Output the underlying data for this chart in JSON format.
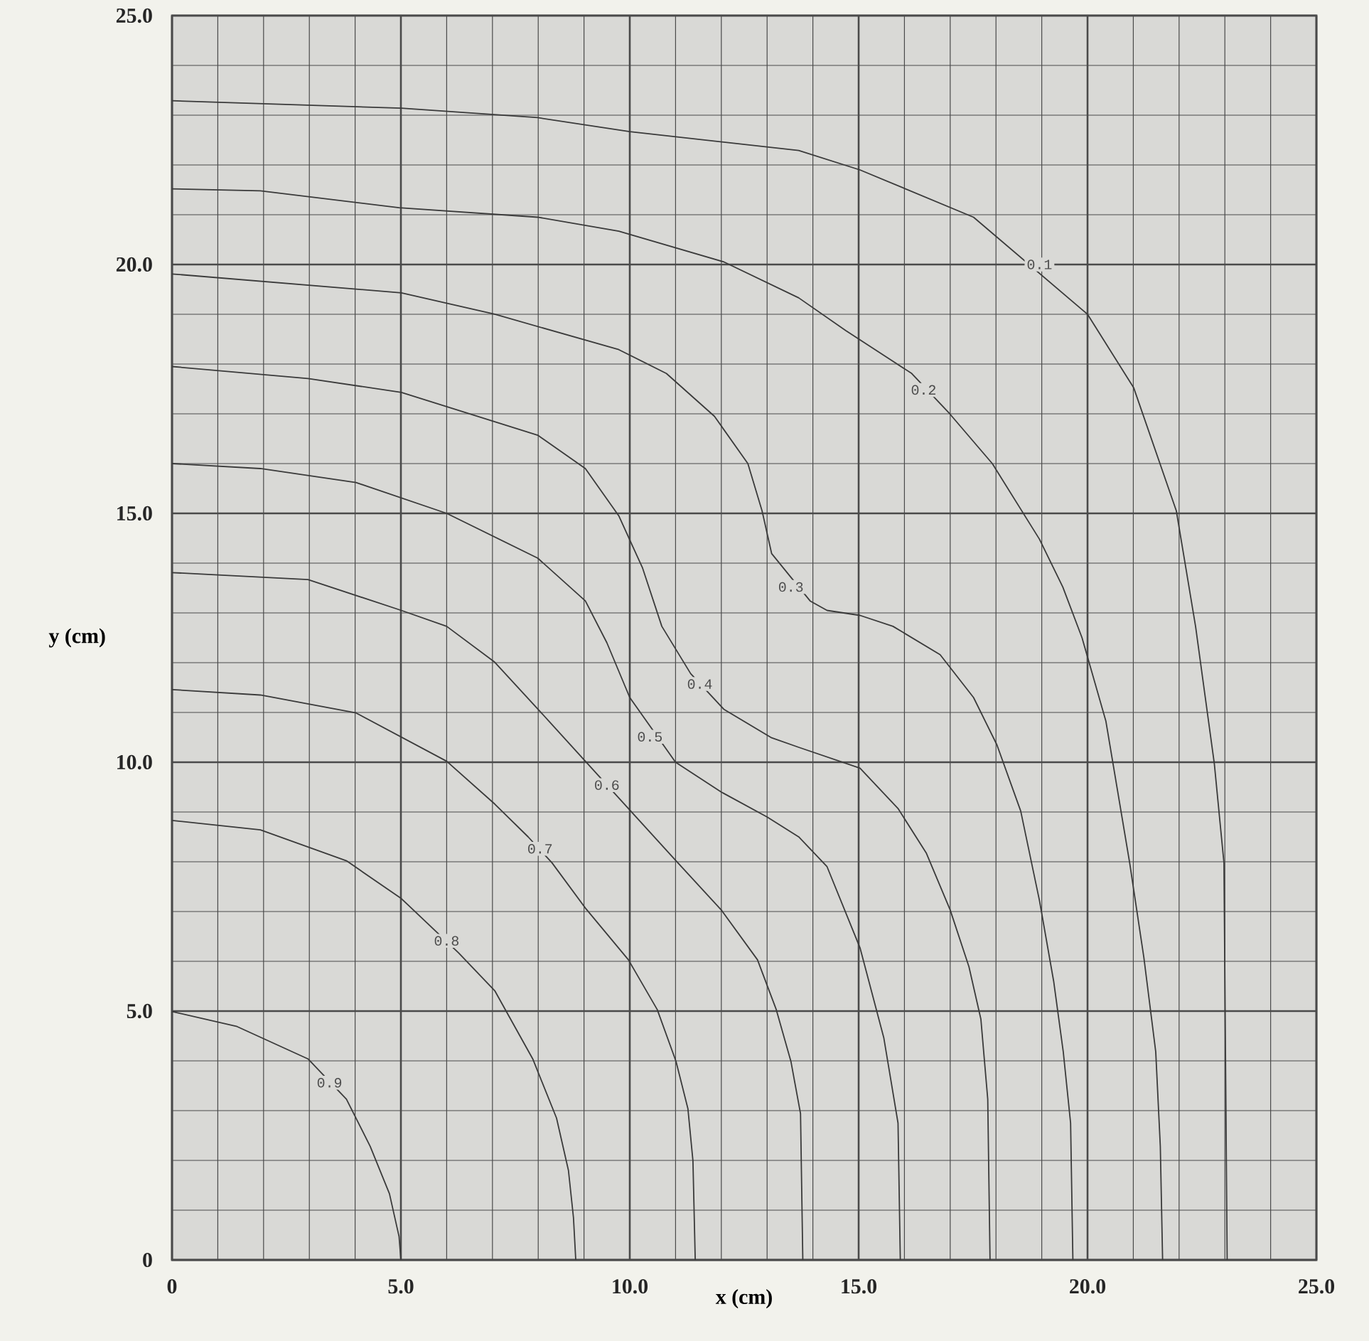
{
  "chart_data": {
    "type": "line",
    "xlabel": "x (cm)",
    "ylabel": "y (cm)",
    "xlim": [
      0,
      25
    ],
    "ylim": [
      0,
      25
    ],
    "xticks": [
      {
        "value": 0,
        "label": "0"
      },
      {
        "value": 5,
        "label": "5.0"
      },
      {
        "value": 10,
        "label": "10.0"
      },
      {
        "value": 15,
        "label": "15.0"
      },
      {
        "value": 20,
        "label": "20.0"
      },
      {
        "value": 25,
        "label": "25.0"
      }
    ],
    "yticks": [
      {
        "value": 0,
        "label": "0"
      },
      {
        "value": 5,
        "label": "5.0"
      },
      {
        "value": 10,
        "label": "10.0"
      },
      {
        "value": 15,
        "label": "15.0"
      },
      {
        "value": 20,
        "label": "20.0"
      },
      {
        "value": 25,
        "label": "25.0"
      }
    ],
    "grid": true,
    "series": [
      {
        "color": "#3a3a3a",
        "x": [
          0,
          5.01,
          7.99,
          10.0,
          13.69,
          15.03,
          17.51,
          20.0,
          21.01,
          21.94,
          22.36,
          22.77,
          22.98,
          23.05
        ],
        "values": [
          23.29,
          23.14,
          22.95,
          22.67,
          22.29,
          21.9,
          20.95,
          19.0,
          17.52,
          15.05,
          12.73,
          9.97,
          7.98,
          0
        ]
      },
      {
        "color": "#3a3a3a",
        "x": [
          0,
          1.93,
          4.96,
          7.99,
          9.76,
          12.06,
          13.69,
          14.72,
          16.16,
          16.99,
          17.92,
          18.95,
          19.46,
          19.88,
          20.4,
          20.92,
          21.23,
          21.49,
          21.59,
          21.64
        ],
        "values": [
          21.52,
          21.48,
          21.14,
          20.95,
          20.67,
          20.05,
          19.33,
          18.67,
          17.81,
          17.0,
          16.0,
          14.48,
          13.52,
          12.5,
          10.83,
          7.98,
          6.08,
          4.18,
          2.28,
          0
        ]
      },
      {
        "color": "#3a3a3a",
        "x": [
          0,
          5.01,
          7.05,
          9.76,
          10.8,
          11.85,
          12.58,
          12.89,
          13.1,
          13.94,
          14.31,
          15.03,
          15.75,
          16.78,
          17.51,
          18.02,
          18.54,
          18.95,
          19.26,
          19.47,
          19.63,
          19.68
        ],
        "values": [
          19.81,
          19.43,
          19.0,
          18.29,
          17.81,
          16.95,
          16.0,
          15.05,
          14.19,
          13.24,
          13.05,
          12.95,
          12.73,
          12.16,
          11.3,
          10.35,
          9.02,
          7.22,
          5.6,
          4.18,
          2.75,
          0
        ]
      },
      {
        "color": "#3a3a3a",
        "x": [
          0,
          2.97,
          5.01,
          7.99,
          9.03,
          9.76,
          10.28,
          10.7,
          11.33,
          12.06,
          13.1,
          13.69,
          15.03,
          15.86,
          16.48,
          17.0,
          17.41,
          17.67,
          17.82,
          17.87
        ],
        "values": [
          17.95,
          17.71,
          17.43,
          16.57,
          15.9,
          14.95,
          13.9,
          12.73,
          11.78,
          11.06,
          10.49,
          10.3,
          9.88,
          9.07,
          8.17,
          7.03,
          5.89,
          4.84,
          3.23,
          0
        ]
      },
      {
        "color": "#3a3a3a",
        "x": [
          0,
          1.93,
          4.02,
          6.0,
          7.99,
          9.03,
          9.5,
          10.0,
          11.0,
          12.0,
          13.0,
          13.69,
          14.31,
          15.03,
          15.55,
          15.86,
          15.91
        ],
        "values": [
          16.0,
          15.9,
          15.62,
          15.0,
          14.1,
          13.24,
          12.4,
          11.3,
          10.0,
          9.4,
          8.9,
          8.5,
          7.9,
          6.27,
          4.46,
          2.75,
          0
        ]
      },
      {
        "color": "#3a3a3a",
        "x": [
          0,
          2.97,
          5.01,
          6.0,
          7.05,
          8.04,
          9.03,
          9.97,
          11.01,
          12.0,
          12.79,
          13.2,
          13.52,
          13.73,
          13.78
        ],
        "values": [
          13.81,
          13.67,
          13.05,
          12.73,
          12.01,
          11.02,
          10.02,
          9.07,
          8.02,
          7.03,
          6.03,
          5.03,
          3.99,
          2.94,
          0
        ]
      },
      {
        "color": "#3a3a3a",
        "x": [
          0,
          1.93,
          4.02,
          6.0,
          7.05,
          7.78,
          8.3,
          9.03,
          9.97,
          10.6,
          11.01,
          11.27,
          11.38,
          11.43
        ],
        "values": [
          11.46,
          11.35,
          10.99,
          10.02,
          9.16,
          8.5,
          7.98,
          7.07,
          6.03,
          5.03,
          3.99,
          3.04,
          1.99,
          0
        ]
      },
      {
        "color": "#3a3a3a",
        "x": [
          0,
          1.93,
          3.81,
          5.01,
          6.26,
          7.05,
          7.88,
          8.4,
          8.66,
          8.77,
          8.82
        ],
        "values": [
          8.83,
          8.64,
          8.02,
          7.26,
          6.17,
          5.41,
          4.04,
          2.85,
          1.8,
          0.85,
          0
        ]
      },
      {
        "color": "#3a3a3a",
        "x": [
          0,
          1.42,
          2.97,
          3.81,
          4.33,
          4.75,
          4.96,
          5.0
        ],
        "values": [
          4.99,
          4.69,
          4.04,
          3.23,
          2.28,
          1.33,
          0.47,
          0
        ]
      }
    ],
    "annotations": [
      {
        "text": "0.1",
        "x": 18.95,
        "y": 20.0
      },
      {
        "text": "0.2",
        "x": 16.42,
        "y": 17.48
      },
      {
        "text": "0.3",
        "x": 13.52,
        "y": 13.52
      },
      {
        "text": "0.4",
        "x": 11.53,
        "y": 11.57
      },
      {
        "text": "0.5",
        "x": 10.44,
        "y": 10.51
      },
      {
        "text": "0.6",
        "x": 9.5,
        "y": 9.54
      },
      {
        "text": "0.7",
        "x": 8.04,
        "y": 8.26
      },
      {
        "text": "0.8",
        "x": 6.0,
        "y": 6.41
      },
      {
        "text": "0.9",
        "x": 3.44,
        "y": 3.56
      }
    ]
  }
}
